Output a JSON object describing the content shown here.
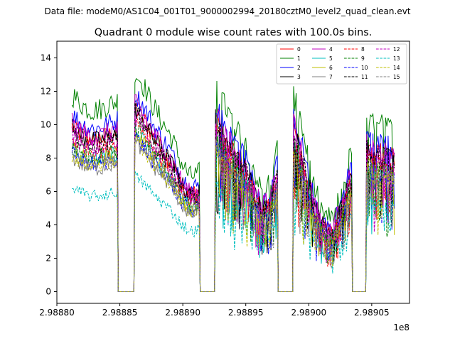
{
  "suptitle": "Data file: modeM0/AS1C04_001T01_9000002994_20180cztM0_level2_quad_clean.evt",
  "chart_data": {
    "type": "line",
    "title": "Quadrant 0 module wise count rates with 100.0s bins.",
    "xlabel": "",
    "ylabel": "",
    "x_offset_label": "1e8",
    "xlim": [
      2.9888,
      2.98908
    ],
    "ylim": [
      -0.7,
      15
    ],
    "grid": false,
    "legend_position": "top-right",
    "x_ticks": [
      2.9888,
      2.98885,
      2.9889,
      2.98895,
      2.989,
      2.98905
    ],
    "x_tick_labels": [
      "2.98880",
      "2.98885",
      "2.98890",
      "2.98895",
      "2.98900",
      "2.98905"
    ],
    "y_ticks": [
      0,
      2,
      4,
      6,
      8,
      10,
      12,
      14
    ],
    "y_tick_labels": [
      "0",
      "2",
      "4",
      "6",
      "8",
      "10",
      "12",
      "14"
    ],
    "observation_windows": [
      [
        2.988812,
        2.988848
      ],
      [
        2.988862,
        2.988913
      ],
      [
        2.988926,
        2.988975
      ],
      [
        2.988988,
        2.989034
      ],
      [
        2.989046,
        2.989068
      ]
    ],
    "window_profiles": [
      [
        1.0,
        0.96,
        0.93,
        0.92,
        0.93,
        0.95,
        0.97
      ],
      [
        1.12,
        1.04,
        0.94,
        0.86,
        0.78,
        0.66,
        0.58,
        0.6
      ],
      [
        1.06,
        0.96,
        0.88,
        0.82,
        0.74,
        0.62,
        0.5,
        0.56,
        0.72
      ],
      [
        1.0,
        0.8,
        0.55,
        0.4,
        0.36,
        0.52,
        0.72
      ],
      [
        0.9,
        0.82,
        0.86,
        0.8
      ]
    ],
    "series": [
      {
        "name": "0",
        "color": "#ff0000",
        "dash": "solid",
        "level": 9.9
      },
      {
        "name": "1",
        "color": "#008000",
        "dash": "solid",
        "level": 11.8
      },
      {
        "name": "2",
        "color": "#0000ff",
        "dash": "solid",
        "level": 10.6
      },
      {
        "name": "3",
        "color": "#000000",
        "dash": "solid",
        "level": 9.8
      },
      {
        "name": "4",
        "color": "#bf00bf",
        "dash": "solid",
        "level": 10.1
      },
      {
        "name": "5",
        "color": "#00bfbf",
        "dash": "solid",
        "level": 8.6
      },
      {
        "name": "6",
        "color": "#bfbf00",
        "dash": "solid",
        "level": 8.5
      },
      {
        "name": "7",
        "color": "#808080",
        "dash": "solid",
        "level": 8.0
      },
      {
        "name": "8",
        "color": "#ff0000",
        "dash": "dashed",
        "level": 9.2
      },
      {
        "name": "9",
        "color": "#008000",
        "dash": "dashed",
        "level": 8.8
      },
      {
        "name": "10",
        "color": "#0000ff",
        "dash": "dashed",
        "level": 8.3
      },
      {
        "name": "11",
        "color": "#000000",
        "dash": "dashed",
        "level": 9.6
      },
      {
        "name": "12",
        "color": "#bf00bf",
        "dash": "dashed",
        "level": 9.4
      },
      {
        "name": "13",
        "color": "#00bfbf",
        "dash": "dashed",
        "level": 6.2
      },
      {
        "name": "14",
        "color": "#bfbf00",
        "dash": "dashed",
        "level": 8.2
      },
      {
        "name": "15",
        "color": "#808080",
        "dash": "dashed",
        "level": 8.4
      }
    ]
  }
}
